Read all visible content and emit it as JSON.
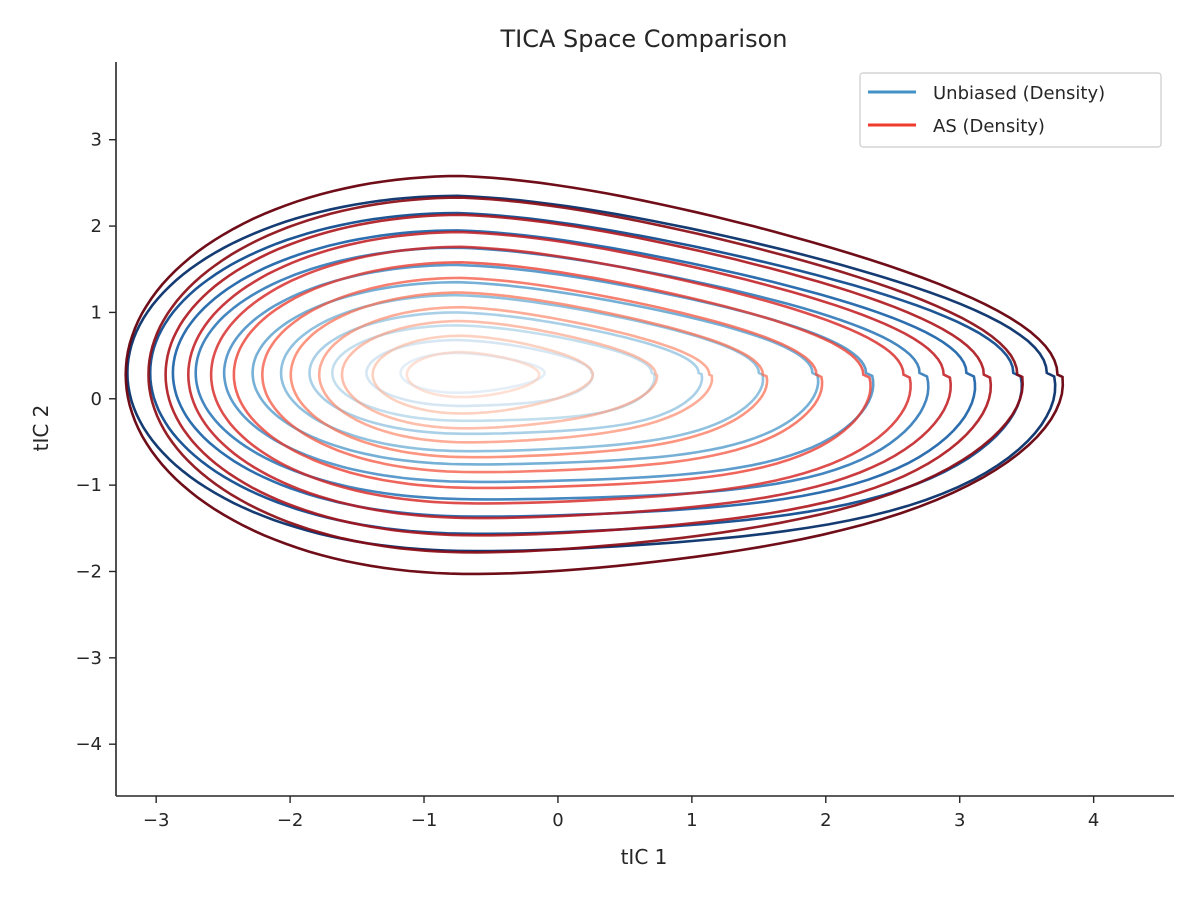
{
  "chart_data": {
    "type": "contour",
    "title": "TICA Space Comparison",
    "xlabel": "tIC 1",
    "ylabel": "tIC 2",
    "xlim": [
      -3.3,
      4.6
    ],
    "ylim": [
      -4.6,
      3.9
    ],
    "xticks": [
      -3,
      -2,
      -1,
      0,
      1,
      2,
      3,
      4
    ],
    "xtick_labels": [
      "−3",
      "−2",
      "−1",
      "0",
      "1",
      "2",
      "3",
      "4"
    ],
    "yticks": [
      -4,
      -3,
      -2,
      -1,
      0,
      1,
      2,
      3
    ],
    "ytick_labels": [
      "−4",
      "−3",
      "−2",
      "−1",
      "0",
      "1",
      "2",
      "3"
    ],
    "grid": false,
    "legend": {
      "position": "top-right"
    },
    "series": [
      {
        "name": "Unbiased (Density)",
        "key": "unbiased",
        "color": "#4292c6",
        "colormap": "Blues",
        "center": [
          -0.75,
          0.3
        ],
        "levels": [
          {
            "rx": 0.5,
            "ry": 0.23,
            "skew": 0.15,
            "dent": 0.0
          },
          {
            "rx": 0.8,
            "ry": 0.38,
            "skew": 0.2,
            "dent": 0.05
          },
          {
            "rx": 1.1,
            "ry": 0.55,
            "skew": 0.35,
            "dent": 0.1
          },
          {
            "rx": 1.3,
            "ry": 0.7,
            "skew": 0.5,
            "dent": 0.12
          },
          {
            "rx": 1.55,
            "ry": 0.9,
            "skew": 0.7,
            "dent": 0.15
          },
          {
            "rx": 1.8,
            "ry": 1.05,
            "skew": 0.85,
            "dent": 0.2
          },
          {
            "rx": 2.05,
            "ry": 1.25,
            "skew": 1.0,
            "dent": 0.25
          },
          {
            "rx": 2.3,
            "ry": 1.45,
            "skew": 1.15,
            "dent": 0.3
          },
          {
            "rx": 2.5,
            "ry": 1.65,
            "skew": 1.3,
            "dent": 0.3
          },
          {
            "rx": 2.7,
            "ry": 1.85,
            "skew": 1.45,
            "dent": 0.3
          },
          {
            "rx": 2.9,
            "ry": 2.05,
            "skew": 1.5,
            "dent": 0.3
          }
        ]
      },
      {
        "name": "AS (Density)",
        "key": "as",
        "color": "#ef3b2c",
        "colormap": "Reds",
        "center": [
          -0.72,
          0.28
        ],
        "levels": [
          {
            "rx": 0.48,
            "ry": 0.26,
            "skew": 0.1,
            "dent": 0.0
          },
          {
            "rx": 0.78,
            "ry": 0.45,
            "skew": 0.2,
            "dent": 0.0
          },
          {
            "rx": 1.05,
            "ry": 0.62,
            "skew": 0.4,
            "dent": 0.05
          },
          {
            "rx": 1.25,
            "ry": 0.78,
            "skew": 0.6,
            "dent": 0.1
          },
          {
            "rx": 1.5,
            "ry": 0.95,
            "skew": 0.75,
            "dent": 0.15
          },
          {
            "rx": 1.75,
            "ry": 1.12,
            "skew": 0.9,
            "dent": 0.2
          },
          {
            "rx": 2.0,
            "ry": 1.3,
            "skew": 1.0,
            "dent": 0.25
          },
          {
            "rx": 2.2,
            "ry": 1.48,
            "skew": 1.1,
            "dent": 0.25
          },
          {
            "rx": 2.4,
            "ry": 1.65,
            "skew": 1.2,
            "dent": 0.25
          },
          {
            "rx": 2.6,
            "ry": 1.85,
            "skew": 1.3,
            "dent": 0.25
          },
          {
            "rx": 2.75,
            "ry": 2.05,
            "skew": 1.4,
            "dent": 0.2
          },
          {
            "rx": 2.95,
            "ry": 2.3,
            "skew": 1.5,
            "dent": 0.2
          }
        ]
      }
    ]
  }
}
